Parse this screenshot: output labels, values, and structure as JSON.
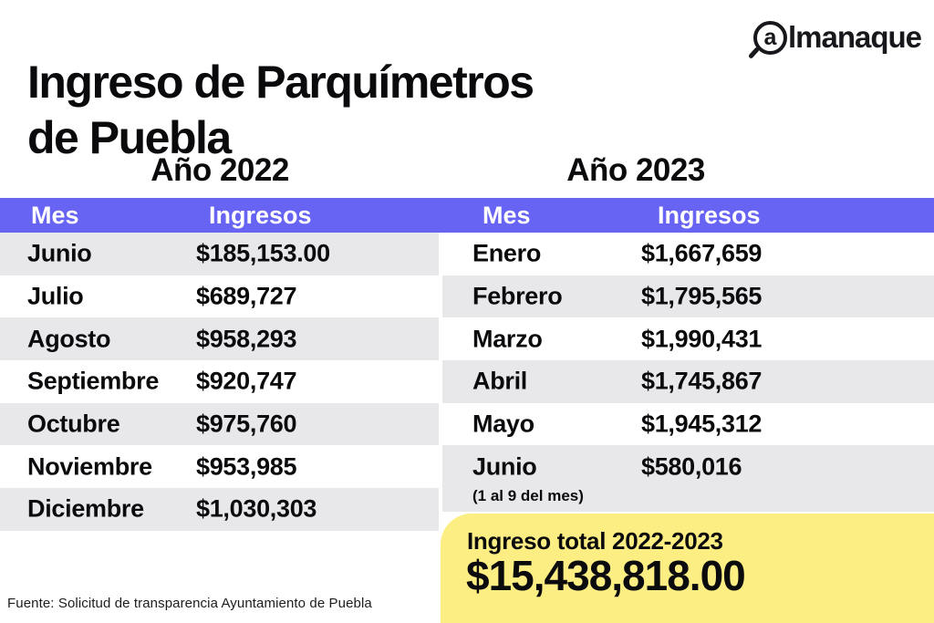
{
  "title_line1": "Ingreso de Parquímetros",
  "title_line2": "de Puebla",
  "logo": {
    "brand": "almanaque",
    "icon_letter": "a",
    "rest": "lmanaque"
  },
  "tables": [
    {
      "year_label": "Año 2022",
      "columns": [
        "Mes",
        "Ingresos"
      ],
      "rows": [
        {
          "month": "Junio",
          "value": "$185,153.00"
        },
        {
          "month": "Julio",
          "value": "$689,727"
        },
        {
          "month": "Agosto",
          "value": "$958,293"
        },
        {
          "month": "Septiembre",
          "value": "$920,747"
        },
        {
          "month": "Octubre",
          "value": "$975,760"
        },
        {
          "month": "Noviembre",
          "value": "$953,985"
        },
        {
          "month": "Diciembre",
          "value": "$1,030,303"
        }
      ]
    },
    {
      "year_label": "Año 2023",
      "columns": [
        "Mes",
        "Ingresos"
      ],
      "rows": [
        {
          "month": "Enero",
          "value": "$1,667,659"
        },
        {
          "month": "Febrero",
          "value": "$1,795,565"
        },
        {
          "month": "Marzo",
          "value": "$1,990,431"
        },
        {
          "month": "Abril",
          "value": "$1,745,867"
        },
        {
          "month": "Mayo",
          "value": "$1,945,312"
        },
        {
          "month": "Junio",
          "value": "$580,016",
          "note": "(1 al 9 del mes)"
        }
      ]
    }
  ],
  "total": {
    "label": "Ingreso total 2022-2023",
    "value": "$15,438,818.00"
  },
  "source": "Fuente: Solicitud de transparencia Ayuntamiento de Puebla",
  "colors": {
    "header_bar": "#6763f3",
    "row_alt": "#e8e7ea",
    "total_bg": "#fcee83",
    "text": "#0a0a0c"
  },
  "chart_data": {
    "type": "table",
    "title": "Ingreso de Parquímetros de Puebla",
    "tables": [
      {
        "year": 2022,
        "columns": [
          "Mes",
          "Ingresos"
        ],
        "rows": [
          [
            "Junio",
            185153.0
          ],
          [
            "Julio",
            689727
          ],
          [
            "Agosto",
            958293
          ],
          [
            "Septiembre",
            920747
          ],
          [
            "Octubre",
            975760
          ],
          [
            "Noviembre",
            953985
          ],
          [
            "Diciembre",
            1030303
          ]
        ]
      },
      {
        "year": 2023,
        "columns": [
          "Mes",
          "Ingresos"
        ],
        "rows": [
          [
            "Enero",
            1667659
          ],
          [
            "Febrero",
            1795565
          ],
          [
            "Marzo",
            1990431
          ],
          [
            "Abril",
            1745867
          ],
          [
            "Mayo",
            1945312
          ],
          [
            "Junio (1 al 9 del mes)",
            580016
          ]
        ]
      }
    ],
    "total": {
      "label": "Ingreso total 2022-2023",
      "value": 15438818.0
    },
    "source": "Fuente: Solicitud de transparencia Ayuntamiento de Puebla"
  }
}
